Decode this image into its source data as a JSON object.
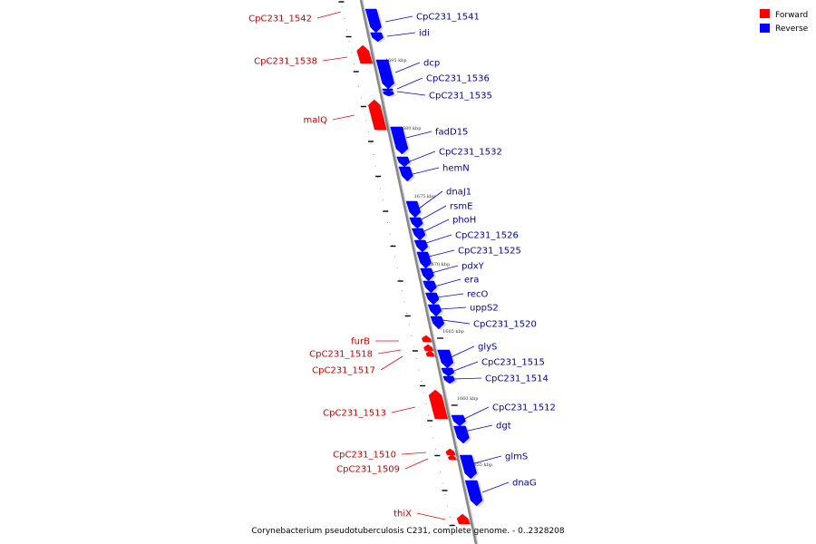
{
  "caption": "Corynebacterium pseudotuberculosis C231, complete genome. - 0..2328208",
  "legend": [
    {
      "label": "Forward",
      "color": "#ff0000"
    },
    {
      "label": "Reverse",
      "color": "#0000ff"
    }
  ],
  "colors": {
    "forward": "#ff0000",
    "reverse": "#0000ff",
    "backbone": "#888888",
    "forward_label": "#cc0000",
    "reverse_label": "#0000aa"
  },
  "ticks": [
    "1685 kbp",
    "1680 kbp",
    "1675 kbp",
    "1670 kbp",
    "1665 kbp",
    "1660 kbp",
    "1655 kbp"
  ],
  "forward_genes": [
    "CpC231_1542",
    "CpC231_1538",
    "malQ",
    "furB",
    "CpC231_1518",
    "CpC231_1517",
    "CpC231_1513",
    "CpC231_1510",
    "CpC231_1509",
    "thiX"
  ],
  "reverse_genes": [
    "CpC231_1541",
    "idi",
    "dcp",
    "CpC231_1536",
    "CpC231_1535",
    "fadD15",
    "CpC231_1532",
    "hemN",
    "dnaJ1",
    "rsmE",
    "phoH",
    "CpC231_1526",
    "CpC231_1525",
    "pdxY",
    "era",
    "recO",
    "uppS2",
    "CpC231_1520",
    "glyS",
    "CpC231_1515",
    "CpC231_1514",
    "CpC231_1512",
    "dgt",
    "glmS",
    "dnaG"
  ]
}
